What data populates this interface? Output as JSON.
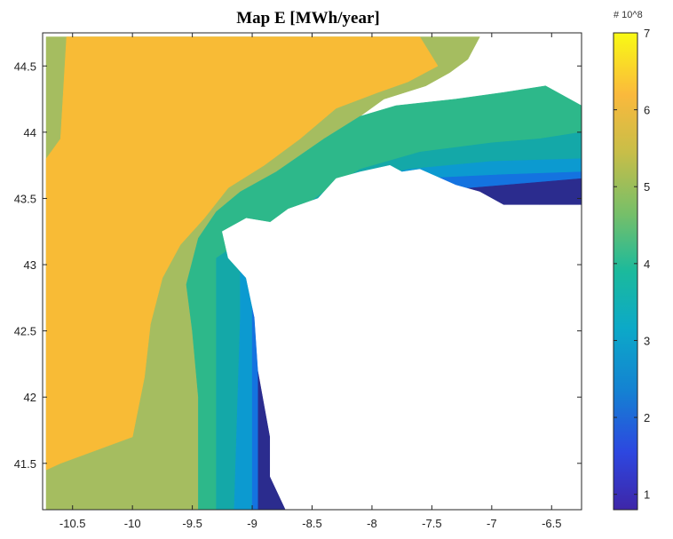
{
  "chart_data": {
    "type": "heatmap",
    "title": "Map E [MWh/year]",
    "xlabel": "",
    "ylabel": "",
    "xlim": [
      -10.75,
      -6.25
    ],
    "ylim": [
      41.15,
      44.75
    ],
    "x_ticks": [
      "-10.5",
      "-10",
      "-9.5",
      "-9",
      "-8.5",
      "-8",
      "-7.5",
      "-7",
      "-6.5"
    ],
    "y_ticks": [
      "41.5",
      "42",
      "42.5",
      "43",
      "43.5",
      "44",
      "44.5"
    ],
    "colorbar": {
      "min": 0.8,
      "max": 7,
      "ticks": [
        "1",
        "2",
        "3",
        "4",
        "5",
        "6",
        "7"
      ],
      "exponent_label": "# 10^8"
    },
    "levels": [
      {
        "value": 6.0,
        "color": "#F8BB36"
      },
      {
        "value": 5.0,
        "color": "#A5BD60"
      },
      {
        "value": 4.3,
        "color": "#2DB88A"
      },
      {
        "value": 3.7,
        "color": "#14A8A8"
      },
      {
        "value": 3.0,
        "color": "#0C9AD0"
      },
      {
        "value": 2.2,
        "color": "#1473E0"
      },
      {
        "value": 1.0,
        "color": "#2B2C8E"
      }
    ],
    "regions": [
      {
        "level": 1,
        "points": [
          [
            -10.72,
            41.15
          ],
          [
            -10.72,
            44.72
          ],
          [
            -7.1,
            44.72
          ],
          [
            -7.2,
            44.55
          ],
          [
            -7.35,
            44.45
          ],
          [
            -7.55,
            44.35
          ],
          [
            -7.9,
            44.25
          ],
          [
            -8.1,
            44.12
          ],
          [
            -8.4,
            43.95
          ],
          [
            -8.8,
            43.7
          ],
          [
            -9.1,
            43.55
          ],
          [
            -9.3,
            43.4
          ],
          [
            -9.45,
            43.2
          ],
          [
            -9.55,
            42.85
          ],
          [
            -9.5,
            42.5
          ],
          [
            -9.45,
            42.0
          ],
          [
            -9.45,
            41.15
          ]
        ]
      },
      {
        "level": 0,
        "points": [
          [
            -10.72,
            41.45
          ],
          [
            -10.72,
            43.8
          ],
          [
            -10.6,
            43.95
          ],
          [
            -10.55,
            44.72
          ],
          [
            -7.6,
            44.72
          ],
          [
            -7.45,
            44.5
          ],
          [
            -7.7,
            44.38
          ],
          [
            -7.95,
            44.3
          ],
          [
            -8.3,
            44.18
          ],
          [
            -8.6,
            43.95
          ],
          [
            -8.9,
            43.75
          ],
          [
            -9.2,
            43.58
          ],
          [
            -9.4,
            43.35
          ],
          [
            -9.6,
            43.15
          ],
          [
            -9.75,
            42.9
          ],
          [
            -9.85,
            42.55
          ],
          [
            -9.9,
            42.15
          ],
          [
            -10.0,
            41.7
          ],
          [
            -10.3,
            41.6
          ],
          [
            -10.6,
            41.5
          ]
        ]
      },
      {
        "level": 2,
        "points": [
          [
            -9.45,
            41.15
          ],
          [
            -9.45,
            42.0
          ],
          [
            -9.5,
            42.5
          ],
          [
            -9.55,
            42.85
          ],
          [
            -9.45,
            43.2
          ],
          [
            -9.3,
            43.4
          ],
          [
            -9.1,
            43.55
          ],
          [
            -8.8,
            43.7
          ],
          [
            -8.4,
            43.95
          ],
          [
            -8.1,
            44.12
          ],
          [
            -7.8,
            44.2
          ],
          [
            -7.3,
            44.25
          ],
          [
            -6.9,
            44.3
          ],
          [
            -6.55,
            44.35
          ],
          [
            -6.25,
            44.2
          ],
          [
            -6.25,
            43.65
          ],
          [
            -8.1,
            43.6
          ],
          [
            -8.4,
            43.5
          ],
          [
            -8.7,
            43.35
          ],
          [
            -9.05,
            43.2
          ],
          [
            -9.3,
            43.05
          ],
          [
            -9.3,
            42.7
          ],
          [
            -9.3,
            41.15
          ]
        ]
      },
      {
        "level": 3,
        "points": [
          [
            -9.3,
            41.15
          ],
          [
            -9.3,
            42.7
          ],
          [
            -9.3,
            43.05
          ],
          [
            -9.05,
            43.2
          ],
          [
            -8.7,
            43.35
          ],
          [
            -8.4,
            43.55
          ],
          [
            -8.1,
            43.72
          ],
          [
            -7.6,
            43.85
          ],
          [
            -7.0,
            43.92
          ],
          [
            -6.6,
            43.95
          ],
          [
            -6.25,
            44.0
          ],
          [
            -6.25,
            43.55
          ],
          [
            -8.1,
            43.6
          ],
          [
            -8.4,
            43.45
          ],
          [
            -8.7,
            43.3
          ],
          [
            -8.95,
            43.15
          ],
          [
            -9.1,
            43.0
          ],
          [
            -9.1,
            42.6
          ],
          [
            -9.15,
            41.15
          ]
        ]
      },
      {
        "level": 4,
        "points": [
          [
            -9.15,
            41.15
          ],
          [
            -9.1,
            42.6
          ],
          [
            -9.1,
            43.0
          ],
          [
            -8.95,
            43.15
          ],
          [
            -8.7,
            43.3
          ],
          [
            -8.4,
            43.45
          ],
          [
            -8.15,
            43.62
          ],
          [
            -7.7,
            43.72
          ],
          [
            -7.0,
            43.78
          ],
          [
            -6.25,
            43.8
          ],
          [
            -6.25,
            43.5
          ],
          [
            -7.8,
            43.55
          ],
          [
            -8.2,
            43.6
          ],
          [
            -8.5,
            43.4
          ],
          [
            -8.8,
            43.2
          ],
          [
            -9.0,
            42.8
          ],
          [
            -9.0,
            41.15
          ]
        ]
      },
      {
        "level": 5,
        "points": [
          [
            -9.0,
            41.15
          ],
          [
            -9.0,
            42.8
          ],
          [
            -8.95,
            42.9
          ],
          [
            -8.8,
            43.1
          ],
          [
            -8.6,
            43.3
          ],
          [
            -8.35,
            43.5
          ],
          [
            -8.1,
            43.62
          ],
          [
            -7.6,
            43.65
          ],
          [
            -6.9,
            43.68
          ],
          [
            -6.25,
            43.7
          ],
          [
            -6.25,
            43.42
          ],
          [
            -7.55,
            43.55
          ],
          [
            -8.0,
            43.6
          ],
          [
            -8.3,
            43.45
          ],
          [
            -8.6,
            43.25
          ],
          [
            -8.85,
            43.0
          ],
          [
            -8.95,
            42.5
          ],
          [
            -8.85,
            41.15
          ]
        ]
      },
      {
        "level": 6,
        "points": [
          [
            -8.95,
            41.15
          ],
          [
            -8.95,
            42.5
          ],
          [
            -8.85,
            42.2
          ],
          [
            -8.8,
            41.7
          ],
          [
            -8.72,
            41.2
          ],
          [
            -8.72,
            41.15
          ]
        ]
      },
      {
        "level": 6,
        "points": [
          [
            -7.55,
            43.55
          ],
          [
            -6.25,
            43.65
          ],
          [
            -6.25,
            43.42
          ],
          [
            -7.65,
            43.42
          ]
        ]
      }
    ],
    "land": [
      [
        -8.72,
        41.15
      ],
      [
        -8.85,
        41.4
      ],
      [
        -8.85,
        41.7
      ],
      [
        -8.95,
        42.2
      ],
      [
        -8.98,
        42.6
      ],
      [
        -9.05,
        42.9
      ],
      [
        -9.2,
        43.05
      ],
      [
        -9.25,
        43.25
      ],
      [
        -9.05,
        43.35
      ],
      [
        -8.85,
        43.32
      ],
      [
        -8.7,
        43.42
      ],
      [
        -8.45,
        43.5
      ],
      [
        -8.3,
        43.65
      ],
      [
        -8.1,
        43.7
      ],
      [
        -7.85,
        43.75
      ],
      [
        -7.75,
        43.7
      ],
      [
        -7.6,
        43.72
      ],
      [
        -7.3,
        43.6
      ],
      [
        -7.1,
        43.55
      ],
      [
        -6.9,
        43.45
      ],
      [
        -6.6,
        43.45
      ],
      [
        -6.25,
        43.45
      ],
      [
        -6.25,
        41.15
      ]
    ]
  }
}
